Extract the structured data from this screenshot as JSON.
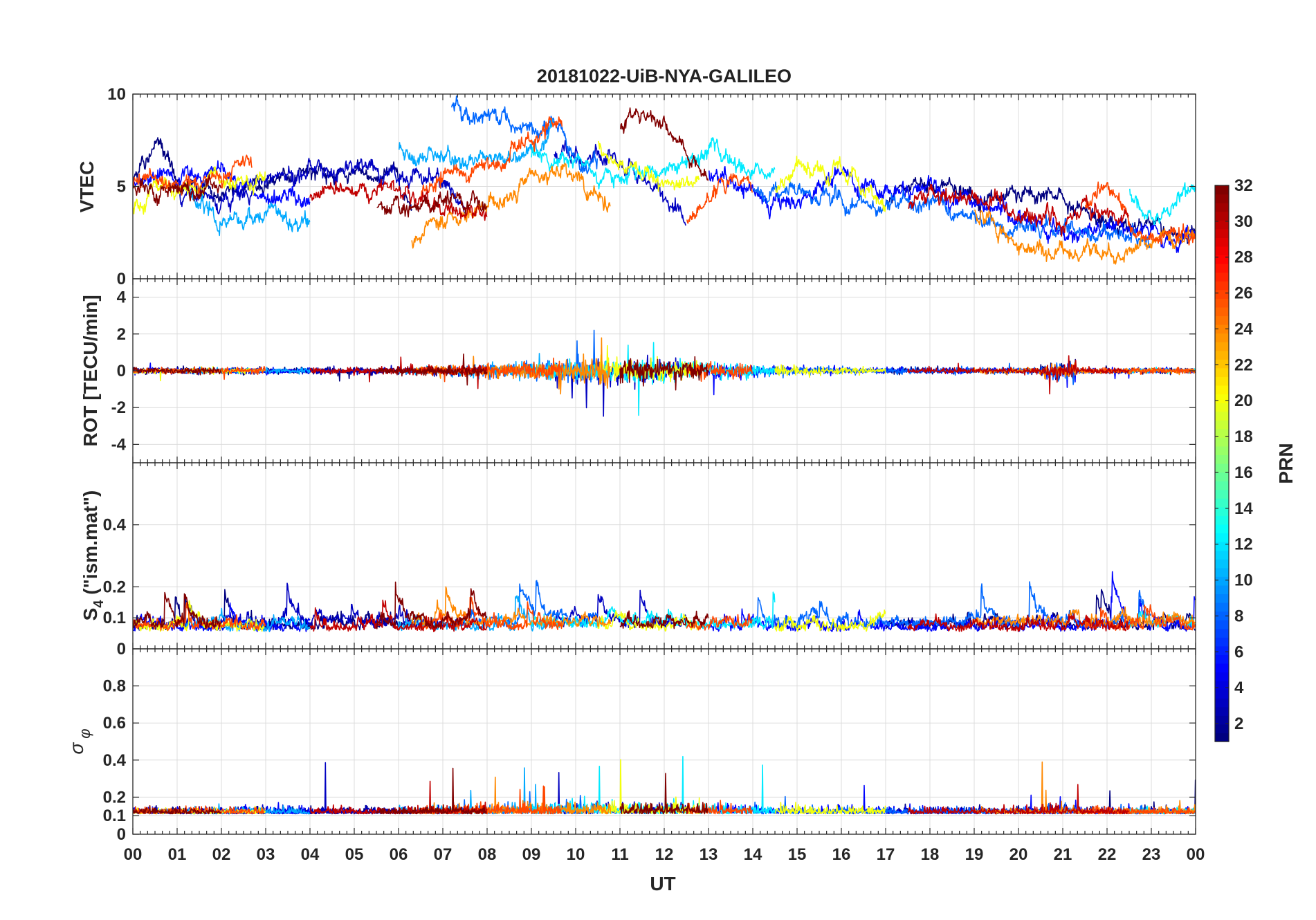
{
  "chart_data": {
    "type": "line",
    "title": "20181022-UiB-NYA-GALILEO",
    "xlabel": "UT",
    "x_ticks": [
      "00",
      "01",
      "02",
      "03",
      "04",
      "05",
      "06",
      "07",
      "08",
      "09",
      "10",
      "11",
      "12",
      "13",
      "14",
      "15",
      "16",
      "17",
      "18",
      "19",
      "20",
      "21",
      "22",
      "23",
      "00"
    ],
    "xlim": [
      0,
      24
    ],
    "panels": [
      {
        "name": "vtec",
        "ylabel": "VTEC",
        "ylim": [
          0,
          10
        ],
        "yticks": [
          0,
          5,
          10
        ]
      },
      {
        "name": "rot",
        "ylabel": "ROT [TECU/min]",
        "ylim": [
          -5,
          5
        ],
        "yticks": [
          -4,
          -2,
          0,
          2,
          4
        ]
      },
      {
        "name": "s4",
        "ylabel": "S4 (\"ism.mat\")",
        "ylim": [
          0,
          0.6
        ],
        "yticks": [
          0,
          0.1,
          0.2,
          0.4
        ]
      },
      {
        "name": "sigma",
        "ylabel": "σ φ",
        "ylim": [
          0,
          1.0
        ],
        "yticks": [
          0,
          0.1,
          0.2,
          0.4,
          0.6,
          0.8
        ]
      }
    ],
    "colorbar": {
      "label": "PRN",
      "range": [
        1,
        32
      ],
      "ticks": [
        2,
        4,
        6,
        8,
        10,
        12,
        14,
        16,
        18,
        20,
        22,
        24,
        26,
        28,
        30,
        32
      ],
      "colormap": "jet"
    },
    "series": [
      {
        "prn": 1,
        "arcs": [
          [
            0.0,
            6.3
          ],
          [
            17.0,
            24.0
          ]
        ],
        "vtec": [
          [
            0,
            5.0
          ],
          [
            0.5,
            7.4
          ],
          [
            1,
            5.2
          ],
          [
            2,
            4.6
          ],
          [
            3,
            5.4
          ],
          [
            4,
            5.6
          ],
          [
            5,
            5.8
          ],
          [
            6,
            5.2
          ],
          [
            6.3,
            4.2
          ],
          [
            17,
            4.4
          ],
          [
            18,
            5.4
          ],
          [
            19,
            4.2
          ],
          [
            20,
            4.8
          ],
          [
            21,
            4.2
          ],
          [
            22,
            3.0
          ],
          [
            23,
            2.8
          ],
          [
            24,
            2.2
          ]
        ]
      },
      {
        "prn": 3,
        "arcs": [
          [
            1.0,
            7.5
          ],
          [
            9.5,
            12.5
          ]
        ],
        "vtec": [
          [
            1,
            4.8
          ],
          [
            2,
            4.4
          ],
          [
            3,
            5.2
          ],
          [
            4,
            5.8
          ],
          [
            5,
            6.4
          ],
          [
            6,
            5.6
          ],
          [
            7,
            5.2
          ],
          [
            7.5,
            4.0
          ],
          [
            9.5,
            6.6
          ],
          [
            10.5,
            6.8
          ],
          [
            11,
            6.2
          ],
          [
            12,
            4.2
          ],
          [
            12.5,
            3.1
          ]
        ]
      },
      {
        "prn": 5,
        "arcs": [
          [
            0.0,
            4.0
          ],
          [
            13.0,
            24.0
          ]
        ],
        "vtec": [
          [
            0,
            5.1
          ],
          [
            1,
            5.5
          ],
          [
            2,
            5.8
          ],
          [
            3,
            4.6
          ],
          [
            4,
            4.2
          ],
          [
            13,
            5.6
          ],
          [
            14,
            5.0
          ],
          [
            15,
            4.0
          ],
          [
            16,
            5.5
          ],
          [
            17,
            4.6
          ],
          [
            18,
            5.0
          ],
          [
            19,
            4.2
          ],
          [
            20,
            3.3
          ],
          [
            21,
            2.2
          ],
          [
            22,
            2.8
          ],
          [
            23,
            2.5
          ],
          [
            24,
            2.2
          ]
        ]
      },
      {
        "prn": 8,
        "arcs": [
          [
            7.2,
            10.5
          ],
          [
            14.0,
            23.0
          ]
        ],
        "vtec": [
          [
            7.2,
            9.2
          ],
          [
            8,
            8.8
          ],
          [
            9,
            8.2
          ],
          [
            9.5,
            8.4
          ],
          [
            10,
            6.4
          ],
          [
            10.5,
            6.0
          ],
          [
            14,
            4.8
          ],
          [
            15,
            4.6
          ],
          [
            16,
            4.2
          ],
          [
            17,
            4.0
          ],
          [
            18,
            4.1
          ],
          [
            19,
            3.2
          ],
          [
            20,
            2.8
          ],
          [
            21,
            2.6
          ],
          [
            22,
            2.2
          ],
          [
            23,
            2.2
          ]
        ]
      },
      {
        "prn": 10,
        "arcs": [
          [
            1.2,
            4.0
          ],
          [
            6.0,
            9.5
          ]
        ],
        "vtec": [
          [
            1.2,
            5.0
          ],
          [
            2,
            3.0
          ],
          [
            3,
            3.5
          ],
          [
            3.5,
            3.0
          ],
          [
            4,
            3.5
          ],
          [
            6,
            7.0
          ],
          [
            7,
            6.6
          ],
          [
            8,
            6.4
          ],
          [
            9,
            7.0
          ],
          [
            9.5,
            8.0
          ]
        ]
      },
      {
        "prn": 12,
        "arcs": [
          [
            9.0,
            14.5
          ],
          [
            22.5,
            24.0
          ]
        ],
        "vtec": [
          [
            9,
            6.6
          ],
          [
            10,
            6.4
          ],
          [
            11,
            5.6
          ],
          [
            12,
            6.0
          ],
          [
            13,
            7.0
          ],
          [
            14,
            6.0
          ],
          [
            14.5,
            5.8
          ],
          [
            22.5,
            4.8
          ],
          [
            23,
            3.2
          ],
          [
            23.5,
            3.6
          ],
          [
            24,
            5.0
          ]
        ]
      },
      {
        "prn": 20,
        "arcs": [
          [
            0.0,
            3.0
          ],
          [
            10.5,
            12.8
          ],
          [
            14.5,
            17.0
          ]
        ],
        "vtec": [
          [
            0,
            3.6
          ],
          [
            0.5,
            4.6
          ],
          [
            1,
            4.8
          ],
          [
            2,
            5.2
          ],
          [
            3,
            5.5
          ],
          [
            10.5,
            7.4
          ],
          [
            11,
            6.0
          ],
          [
            12,
            5.2
          ],
          [
            12.8,
            5.4
          ],
          [
            14.5,
            4.8
          ],
          [
            15,
            6.0
          ],
          [
            16,
            6.2
          ],
          [
            16.5,
            5.0
          ],
          [
            17,
            4.0
          ]
        ]
      },
      {
        "prn": 24,
        "arcs": [
          [
            6.3,
            10.8
          ],
          [
            19.0,
            24.0
          ]
        ],
        "vtec": [
          [
            6.3,
            2.0
          ],
          [
            6.8,
            3.0
          ],
          [
            7,
            3.5
          ],
          [
            8,
            3.8
          ],
          [
            9,
            5.2
          ],
          [
            9.5,
            6.0
          ],
          [
            10,
            5.6
          ],
          [
            10.8,
            4.0
          ],
          [
            19,
            4.0
          ],
          [
            19.5,
            2.2
          ],
          [
            20,
            1.6
          ],
          [
            21,
            1.7
          ],
          [
            21.5,
            1.2
          ],
          [
            22,
            1.5
          ],
          [
            23,
            2.0
          ],
          [
            24,
            2.3
          ]
        ]
      },
      {
        "prn": 26,
        "arcs": [
          [
            0.0,
            3.0
          ],
          [
            6.5,
            9.7
          ],
          [
            12.5,
            14.0
          ],
          [
            21.5,
            24.0
          ]
        ],
        "vtec": [
          [
            0,
            5.3
          ],
          [
            1,
            5.0
          ],
          [
            2,
            5.4
          ],
          [
            2.7,
            6.6
          ],
          [
            6.5,
            4.4
          ],
          [
            7,
            5.4
          ],
          [
            8,
            6.0
          ],
          [
            9,
            7.8
          ],
          [
            9.7,
            8.2
          ],
          [
            12.5,
            3.0
          ],
          [
            13,
            4.5
          ],
          [
            14,
            5.0
          ],
          [
            21.5,
            4.0
          ],
          [
            22,
            5.0
          ],
          [
            22.5,
            3.0
          ],
          [
            23,
            2.4
          ],
          [
            24,
            2.3
          ]
        ]
      },
      {
        "prn": 30,
        "arcs": [
          [
            4.0,
            8.0
          ],
          [
            17.5,
            22.5
          ]
        ],
        "vtec": [
          [
            4,
            4.6
          ],
          [
            5,
            4.8
          ],
          [
            6,
            5.2
          ],
          [
            7,
            4.0
          ],
          [
            8,
            3.6
          ],
          [
            17.5,
            4.3
          ],
          [
            18,
            4.6
          ],
          [
            19,
            4.4
          ],
          [
            20,
            3.4
          ],
          [
            21,
            3.2
          ],
          [
            21.5,
            3.8
          ],
          [
            22,
            3.5
          ],
          [
            22.5,
            3.6
          ]
        ]
      },
      {
        "prn": 32,
        "arcs": [
          [
            0.0,
            2.0
          ],
          [
            5.5,
            8.0
          ],
          [
            11.0,
            13.0
          ]
        ],
        "vtec": [
          [
            0,
            5.0
          ],
          [
            1,
            4.8
          ],
          [
            2,
            5.0
          ],
          [
            5.5,
            3.8
          ],
          [
            6,
            4.0
          ],
          [
            7,
            4.4
          ],
          [
            8,
            4.2
          ],
          [
            11,
            8.2
          ],
          [
            11.5,
            9.2
          ],
          [
            12,
            8.2
          ],
          [
            12.5,
            7.0
          ],
          [
            13,
            5.4
          ]
        ]
      }
    ]
  }
}
